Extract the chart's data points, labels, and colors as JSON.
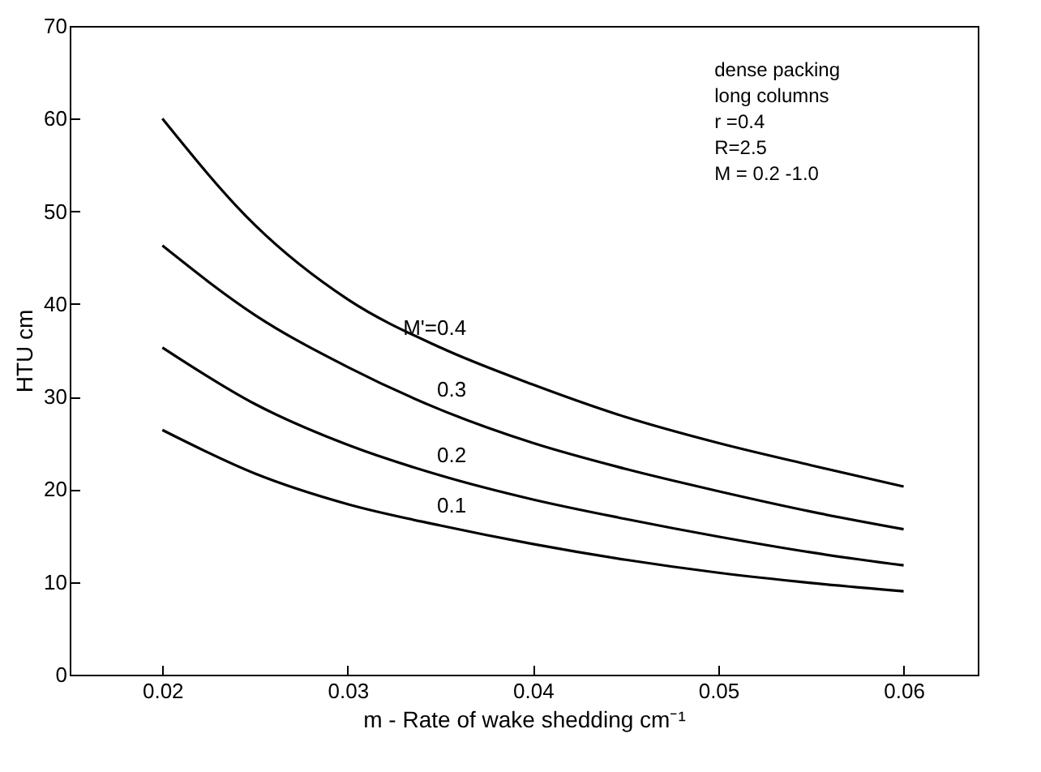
{
  "chart_data": {
    "type": "line",
    "xlabel": "m - Rate of wake shedding cm⁻¹",
    "ylabel": "HTU  cm",
    "x": [
      0.02,
      0.025,
      0.03,
      0.035,
      0.04,
      0.045,
      0.05,
      0.055,
      0.06
    ],
    "series": [
      {
        "name": "M'=0.4",
        "color": "#000000",
        "values": [
          60,
          48.5,
          40.5,
          35.3,
          31.3,
          27.8,
          25,
          22.6,
          20.3
        ]
      },
      {
        "name": "0.3",
        "color": "#000000",
        "values": [
          46.3,
          38.8,
          33.2,
          28.6,
          25,
          22.2,
          19.8,
          17.6,
          15.7
        ]
      },
      {
        "name": "0.2",
        "color": "#000000",
        "values": [
          35.3,
          29.2,
          24.8,
          21.5,
          18.9,
          16.8,
          14.9,
          13.2,
          11.8
        ]
      },
      {
        "name": "0.1",
        "color": "#000000",
        "values": [
          26.4,
          21.7,
          18.4,
          16.1,
          14.1,
          12.4,
          11,
          9.9,
          9
        ]
      }
    ],
    "annotations": [
      "dense packing",
      "long columns",
      "r =0.4",
      "R=2.5",
      "M = 0.2 -1.0"
    ],
    "xlim": [
      0.015,
      0.064
    ],
    "ylim": [
      0,
      70
    ],
    "xticks": [
      0.02,
      0.03,
      0.04,
      0.05,
      0.06
    ],
    "yticks": [
      0,
      10,
      20,
      30,
      40,
      50,
      60,
      70
    ],
    "grid": false,
    "legend": false,
    "marker": "none",
    "line_style": "solid"
  }
}
